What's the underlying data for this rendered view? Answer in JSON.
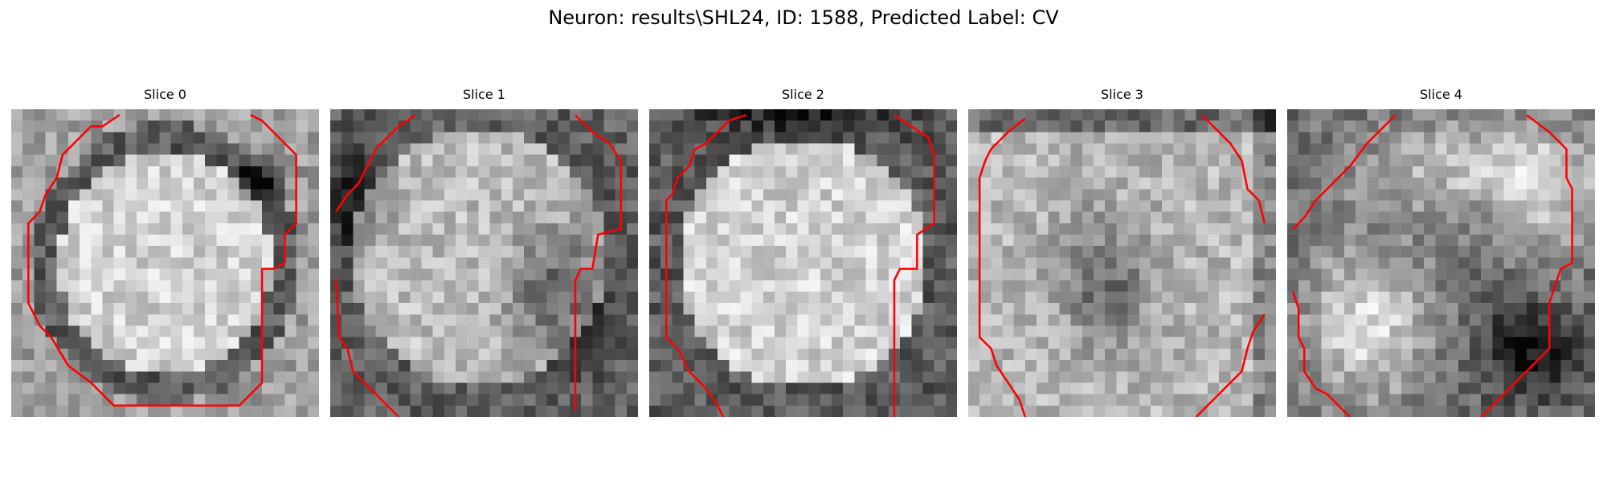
{
  "figure": {
    "title": "Neuron: results\\SHL24, ID: 1588, Predicted Label: CV"
  },
  "panels": [
    {
      "title": "Slice 0"
    },
    {
      "title": "Slice 1"
    },
    {
      "title": "Slice 2"
    },
    {
      "title": "Slice 3"
    },
    {
      "title": "Slice 4"
    }
  ],
  "colors": {
    "contour": "#ff0000",
    "background": "#ffffff"
  },
  "image": {
    "colormap": "grayscale",
    "grid": "27x27"
  }
}
